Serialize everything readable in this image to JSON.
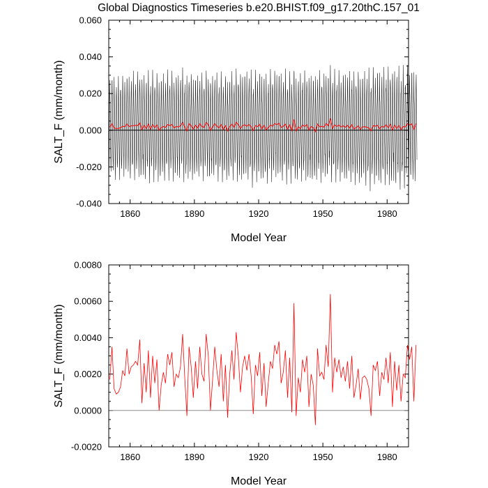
{
  "title": "Global Diagnostics Timeseries b.e20.BHIST.f09_g17.20thC.157_01",
  "chart_data": [
    {
      "type": "line",
      "panel": "monthly",
      "xlabel": "Model Year",
      "ylabel": "SALT_F (mm/month)",
      "xlim": [
        1850,
        1990
      ],
      "ylim": [
        -0.04,
        0.06
      ],
      "xticks": [
        1860,
        1890,
        1920,
        1950,
        1980
      ],
      "xtick_labels": [
        "1860",
        "1890",
        "1920",
        "1950",
        "1980"
      ],
      "yticks": [
        -0.04,
        -0.02,
        0,
        0.02,
        0.04,
        0.06
      ],
      "ytick_labels": [
        "-0.040",
        "-0.020",
        "0.000",
        "0.020",
        "0.040",
        "0.060"
      ],
      "zero_line": true,
      "grid": false,
      "series": [
        {
          "color": "#000000",
          "monthly_seasonal_cycle": [
            -0.025,
            -0.03,
            -0.02,
            -0.005,
            0.01,
            0.02,
            0.03,
            0.025,
            0.015,
            0.005,
            -0.008,
            -0.018
          ],
          "envelope_max": [
            0.035,
            0.04,
            0.04,
            0.041,
            0.038,
            0.038,
            0.044,
            0.043,
            0.041,
            0.043,
            0.042,
            0.045,
            0.05,
            0.052,
            0.05
          ]
        },
        {
          "color": "#ff0000",
          "values_from": "annual_mean"
        }
      ]
    },
    {
      "type": "line",
      "panel": "annual",
      "xlabel": "Model Year",
      "ylabel": "SALT_F (mm/month)",
      "xlim": [
        1850,
        1990
      ],
      "ylim": [
        -0.002,
        0.008
      ],
      "xticks": [
        1860,
        1890,
        1920,
        1950,
        1980
      ],
      "xtick_labels": [
        "1860",
        "1890",
        "1920",
        "1950",
        "1980"
      ],
      "yticks": [
        -0.002,
        0,
        0.002,
        0.004,
        0.006,
        0.008
      ],
      "ytick_labels": [
        "-0.0020",
        "0.0000",
        "0.0020",
        "0.0040",
        "0.0060",
        "0.0080"
      ],
      "zero_line": true,
      "grid": false,
      "series": [
        {
          "color": "#ff0000",
          "x_start": 1850,
          "x_step": 1,
          "annual_mean": [
            0.0017,
            0.0035,
            0.0012,
            0.0009,
            0.001,
            0.0013,
            0.0022,
            0.0019,
            0.0034,
            0.002,
            0.0024,
            0.0025,
            0.0027,
            0.0025,
            0.0039,
            0.0004,
            0.0026,
            0.001,
            0.0033,
            0.0007,
            0.003,
            0.0015,
            0.0028,
            0.0,
            0.0014,
            0.0021,
            0.0015,
            0.0031,
            0.0025,
            0.0032,
            0.0013,
            0.002,
            0.0018,
            0.0024,
            0.0042,
            0.0018,
            -0.0003,
            0.0035,
            0.0024,
            0.0007,
            0.0027,
            0.0012,
            0.0035,
            0.002,
            0.0016,
            0.0042,
            0.003,
            0.0,
            0.0017,
            0.0035,
            0.0022,
            0.0013,
            0.0031,
            0.0005,
            0.0025,
            -0.0004,
            0.002,
            0.0033,
            0.0017,
            0.0043,
            0.003,
            0.001,
            0.0024,
            0.003,
            0.0022,
            0.0031,
            0.0019,
            -0.0002,
            0.0025,
            0.0019,
            0.0032,
            0.0008,
            0.0026,
            0.0002,
            0.0015,
            0.0027,
            0.0023,
            0.0036,
            0.0031,
            0.0038,
            0.0015,
            0.0021,
            0.0033,
            0.0007,
            0.0029,
            -0.0001,
            0.0059,
            -0.0003,
            0.0018,
            0.001,
            0.0028,
            0.0021,
            0.003,
            0.0002,
            0.002,
            0.0014,
            -0.0008,
            0.0034,
            0.0019,
            0.0021,
            0.0017,
            0.0036,
            0.0024,
            0.0064,
            0.001,
            0.0029,
            0.0021,
            0.0028,
            0.0018,
            0.0024,
            0.0016,
            0.0027,
            0.0012,
            0.003,
            0.0007,
            0.0014,
            0.0023,
            0.0006,
            0.0018,
            0.0019,
            0.0017,
            0.0012,
            -0.0003,
            0.0025,
            0.0022,
            0.0027,
            0.0008,
            0.0021,
            0.0017,
            0.0029,
            0.0015,
            0.0032,
            0.0002,
            0.0027,
            0.0011,
            0.0025,
            0.0005,
            0.002,
            0.0018,
            0.0036,
            0.0028,
            0.0035,
            0.0005,
            0.0036
          ]
        }
      ]
    }
  ]
}
